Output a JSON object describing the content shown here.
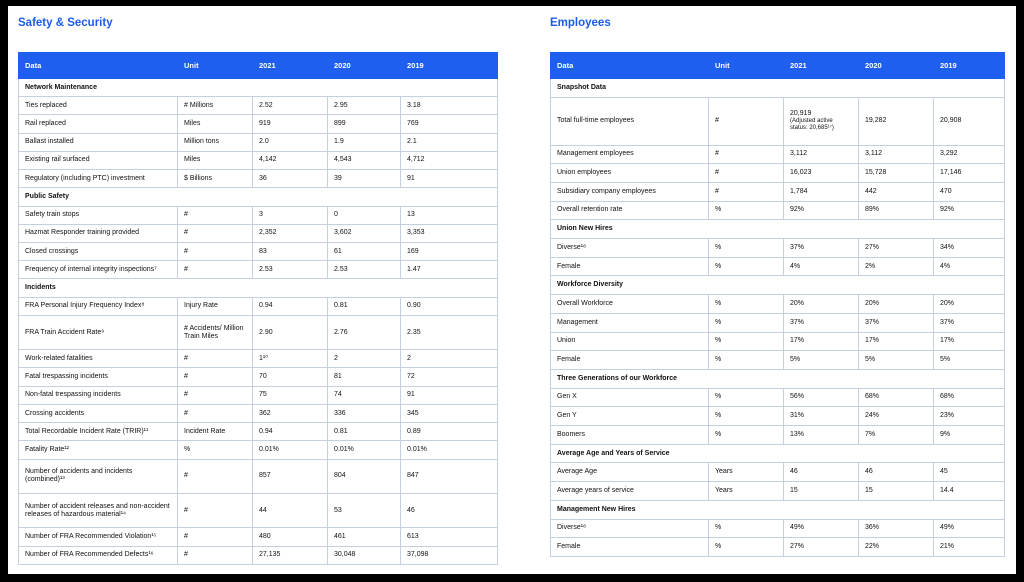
{
  "left": {
    "title": "Safety & Security",
    "headers": [
      "Data",
      "Unit",
      "2021",
      "2020",
      "2019"
    ],
    "sections": [
      {
        "title": "Network Maintenance",
        "rows": [
          [
            "Ties replaced",
            "# Millions",
            "2.52",
            "2.95",
            "3.18"
          ],
          [
            "Rail replaced",
            "Miles",
            "919",
            "899",
            "769"
          ],
          [
            "Ballast installed",
            "Million tons",
            "2.0",
            "1.9",
            "2.1"
          ],
          [
            "Existing rail surfaced",
            "Miles",
            "4,142",
            "4,543",
            "4,712"
          ],
          [
            "Regulatory (including PTC) investment",
            "$ Billions",
            "36",
            "39",
            "91"
          ]
        ]
      },
      {
        "title": "Public Safety",
        "rows": [
          [
            "Safety train stops",
            "#",
            "3",
            "0",
            "13"
          ],
          [
            "Hazmat Responder training provided",
            "#",
            "2,352",
            "3,602",
            "3,353"
          ],
          [
            "Closed crossings",
            "#",
            "83",
            "61",
            "169"
          ],
          [
            "Frequency of internal integrity inspections⁷",
            "#",
            "2.53",
            "2.53",
            "1.47"
          ]
        ]
      },
      {
        "title": "Incidents",
        "rows": [
          [
            "FRA Personal Injury Frequency Index⁸",
            "Injury Rate",
            "0.94",
            "0.81",
            "0.90"
          ],
          [
            "FRA Train Accident Rate⁹",
            "# Accidents/ Million Train Miles",
            "2.90",
            "2.76",
            "2.35"
          ],
          [
            "Work-related fatalities",
            "#",
            "1¹⁰",
            "2",
            "2"
          ],
          [
            "Fatal trespassing incidents",
            "#",
            "70",
            "81",
            "72"
          ],
          [
            "Non-fatal trespassing incidents",
            "#",
            "75",
            "74",
            "91"
          ],
          [
            "Crossing accidents",
            "#",
            "362",
            "336",
            "345"
          ],
          [
            "Total Recordable Incident Rate (TRIR)¹¹",
            "Incident Rate",
            "0.94",
            "0.81",
            "0.89"
          ],
          [
            "Fatality Rate¹²",
            "%",
            "0.01%",
            "0.01%",
            "0.01%"
          ],
          [
            "Number of accidents and incidents (combined)¹³",
            "#",
            "857",
            "804",
            "847"
          ],
          [
            "Number of accident releases and non-accident releases of hazardous material¹⁴",
            "#",
            "44",
            "53",
            "46"
          ],
          [
            "Number of FRA Recommended Violation¹⁵",
            "#",
            "480",
            "461",
            "613"
          ],
          [
            "Number of FRA Recommended Defects¹⁶",
            "#",
            "27,135",
            "30,048",
            "37,098"
          ]
        ]
      }
    ]
  },
  "right": {
    "title": "Employees",
    "headers": [
      "Data",
      "Unit",
      "2021",
      "2020",
      "2019"
    ],
    "sections": [
      {
        "title": "Snapshot Data",
        "rows": [
          [
            "Total full-time employees",
            "#",
            {
              "value": "20,919",
              "note": "(Adjusted active status: 20,685¹⁷)"
            },
            "19,282",
            "20,908"
          ],
          [
            "Management employees",
            "#",
            "3,112",
            "3,112",
            "3,292"
          ],
          [
            "Union employees",
            "#",
            "16,023",
            "15,728",
            "17,146"
          ],
          [
            "Subsidiary company employees",
            "#",
            "1,784",
            "442",
            "470"
          ],
          [
            "Overall retention rate",
            "%",
            "92%",
            "89%",
            "92%"
          ]
        ]
      },
      {
        "title": "Union New Hires",
        "rows": [
          [
            "Diverse¹⁸",
            "%",
            "37%",
            "27%",
            "34%"
          ],
          [
            "Female",
            "%",
            "4%",
            "2%",
            "4%"
          ]
        ]
      },
      {
        "title": "Workforce Diversity",
        "rows": [
          [
            "Overall Workforce",
            "%",
            "20%",
            "20%",
            "20%"
          ],
          [
            "Management",
            "%",
            "37%",
            "37%",
            "37%"
          ],
          [
            "Union",
            "%",
            "17%",
            "17%",
            "17%"
          ],
          [
            "Female",
            "%",
            "5%",
            "5%",
            "5%"
          ]
        ]
      },
      {
        "title": "Three Generations of our Workforce",
        "rows": [
          [
            "Gen X",
            "%",
            "56%",
            "68%",
            "68%"
          ],
          [
            "Gen Y",
            "%",
            "31%",
            "24%",
            "23%"
          ],
          [
            "Boomers",
            "%",
            "13%",
            "7%",
            "9%"
          ]
        ]
      },
      {
        "title": "Average Age and Years of Service",
        "rows": [
          [
            "Average Age",
            "Years",
            "46",
            "46",
            "45"
          ],
          [
            "Average years of service",
            "Years",
            "15",
            "15",
            "14.4"
          ]
        ]
      },
      {
        "title": "Management New Hires",
        "rows": [
          [
            "Diverse¹⁸",
            "%",
            "49%",
            "36%",
            "49%"
          ],
          [
            "Female",
            "%",
            "27%",
            "22%",
            "21%"
          ]
        ]
      }
    ]
  }
}
